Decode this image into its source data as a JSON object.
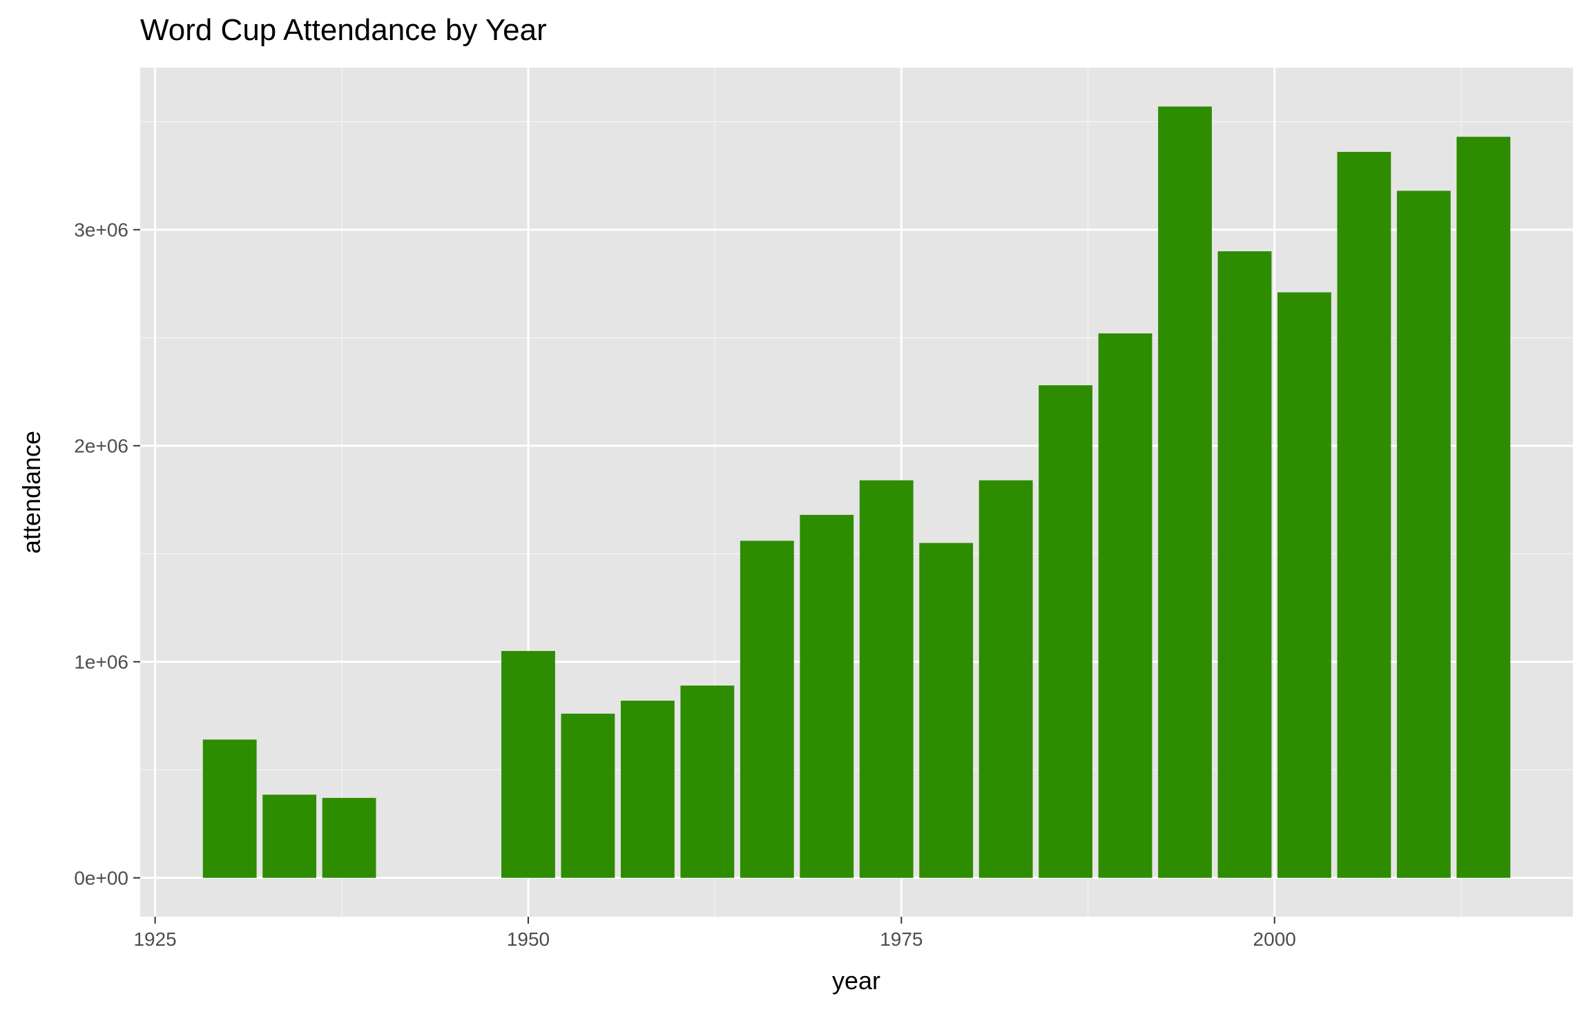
{
  "chart_data": {
    "type": "bar",
    "title": "Word Cup Attendance by Year",
    "xlabel": "year",
    "ylabel": "attendance",
    "x": [
      1930,
      1934,
      1938,
      1950,
      1954,
      1958,
      1962,
      1966,
      1970,
      1974,
      1978,
      1982,
      1986,
      1990,
      1994,
      1998,
      2002,
      2006,
      2010,
      2014
    ],
    "values": [
      640000,
      385000,
      370000,
      1050000,
      760000,
      820000,
      890000,
      1560000,
      1680000,
      1840000,
      1550000,
      1840000,
      2280000,
      2520000,
      3570000,
      2900000,
      2710000,
      3360000,
      3180000,
      3430000
    ],
    "xticks": [
      1925,
      1950,
      1975,
      2000
    ],
    "xtick_labels": [
      "1925",
      "1950",
      "1975",
      "2000"
    ],
    "yticks": [
      0,
      1000000,
      2000000,
      3000000
    ],
    "ytick_labels": [
      "0e+00",
      "1e+06",
      "2e+06",
      "3e+06"
    ],
    "xlim": [
      1924,
      2020
    ],
    "ylim": [
      -180000,
      3750000
    ],
    "bar_color": "#2d8c00",
    "panel_color": "#e5e5e5",
    "grid": true,
    "legend": "none"
  }
}
